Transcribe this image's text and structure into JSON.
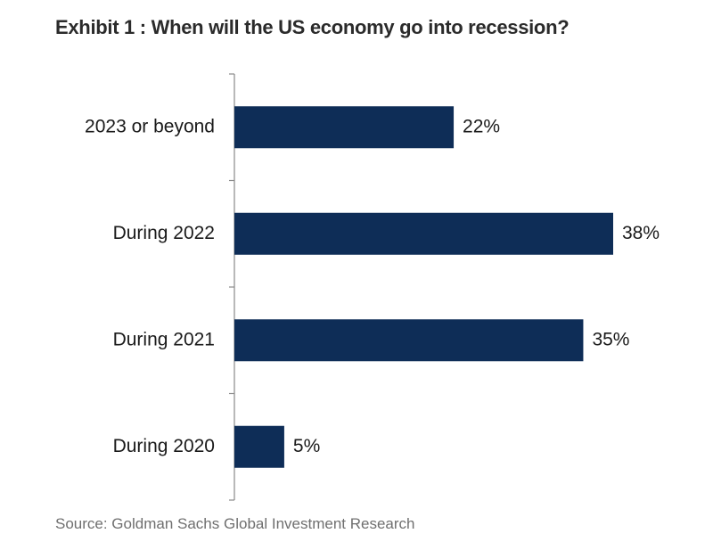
{
  "chart_data": {
    "type": "bar",
    "orientation": "horizontal",
    "title": "Exhibit 1 : When will the US economy go into recession?",
    "categories": [
      "2023 or beyond",
      "During 2022",
      "During 2021",
      "During 2020"
    ],
    "values": [
      22,
      38,
      35,
      5
    ],
    "value_labels": [
      "22%",
      "38%",
      "35%",
      "5%"
    ],
    "unit": "%",
    "xlim": [
      0,
      40
    ],
    "bar_color": "#0e2d57",
    "source": "Source: Goldman Sachs Global Investment Research"
  }
}
